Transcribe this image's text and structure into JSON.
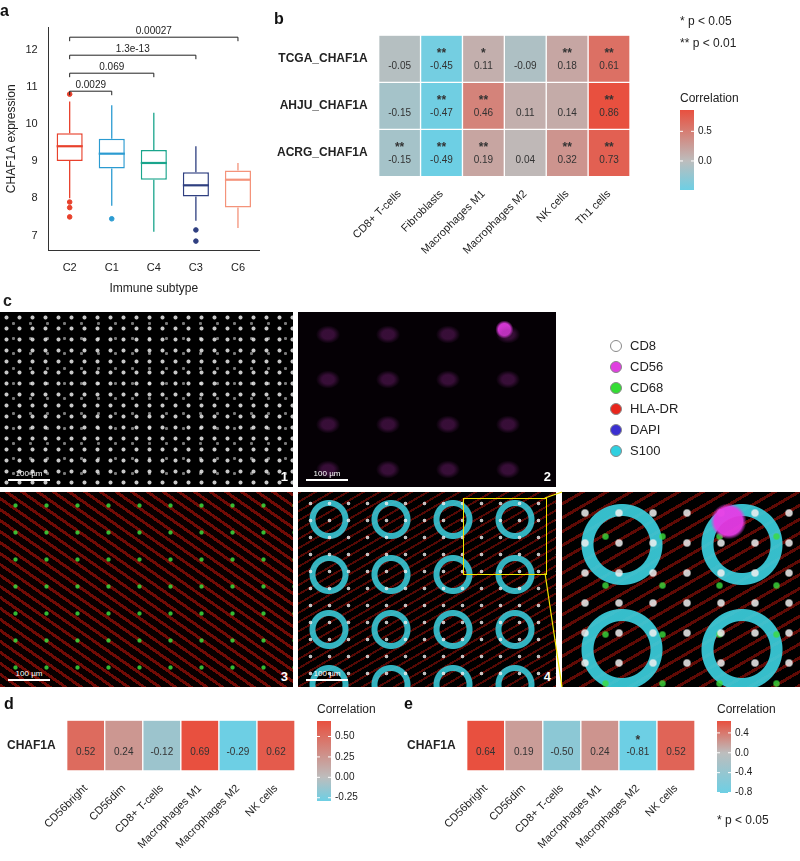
{
  "chart_data": [
    {
      "type": "box",
      "title": "a",
      "categories": [
        "C2",
        "C1",
        "C4",
        "C3",
        "C6"
      ],
      "colors": [
        "#e8412c",
        "#2b9bd1",
        "#1aa58c",
        "#2f3f80",
        "#f4937a"
      ],
      "boxes": [
        {
          "q1": 9.0,
          "median": 9.4,
          "q3": 9.75,
          "whisker_low": 8.0,
          "whisker_high": 10.6,
          "outliers": [
            10.8,
            7.9,
            7.75,
            7.5
          ]
        },
        {
          "q1": 8.8,
          "median": 9.2,
          "q3": 9.6,
          "whisker_low": 7.8,
          "whisker_high": 10.5,
          "outliers": [
            7.45
          ]
        },
        {
          "q1": 8.5,
          "median": 8.95,
          "q3": 9.3,
          "whisker_low": 7.1,
          "whisker_high": 10.3,
          "outliers": []
        },
        {
          "q1": 8.05,
          "median": 8.35,
          "q3": 8.7,
          "whisker_low": 7.4,
          "whisker_high": 9.4,
          "outliers": [
            7.15,
            6.85
          ]
        },
        {
          "q1": 7.75,
          "median": 8.5,
          "q3": 8.75,
          "whisker_low": 7.2,
          "whisker_high": 8.95,
          "outliers": []
        }
      ],
      "x_label": "Immune subtype",
      "y_label": "CHAF1A expression",
      "ylim": [
        6.6,
        12.6
      ],
      "yticks": [
        7,
        8,
        9,
        10,
        11,
        12
      ],
      "grid": false,
      "comparisons": [
        {
          "groups": [
            "C2",
            "C1"
          ],
          "label": "0.0029"
        },
        {
          "groups": [
            "C2",
            "C4"
          ],
          "label": "0.069"
        },
        {
          "groups": [
            "C2",
            "C3"
          ],
          "label": "1.3e-13"
        },
        {
          "groups": [
            "C2",
            "C6"
          ],
          "label": "0.00027"
        }
      ]
    },
    {
      "type": "heatmap",
      "title": "b",
      "x": [
        "CD8+ T-cells",
        "Fibroblasts",
        "Macrophages M1",
        "Macrophages M2",
        "NK cells",
        "Th1 cells"
      ],
      "y": [
        "TCGA_CHAF1A",
        "AHJU_CHAF1A",
        "ACRG_CHAF1A"
      ],
      "values": [
        [
          -0.05,
          -0.45,
          0.11,
          -0.09,
          0.18,
          0.61
        ],
        [
          -0.15,
          -0.47,
          0.46,
          0.11,
          0.14,
          0.86
        ],
        [
          -0.15,
          -0.49,
          0.19,
          0.04,
          0.32,
          0.73
        ]
      ],
      "significance": [
        [
          null,
          "**",
          "*",
          null,
          "**",
          "**"
        ],
        [
          null,
          "**",
          "**",
          null,
          null,
          "**"
        ],
        [
          "**",
          "**",
          "**",
          null,
          "**",
          "**"
        ]
      ],
      "notes": [
        "* p < 0.05",
        "** p < 0.01"
      ],
      "data_labels": true,
      "colorbar": {
        "title": "Correlation",
        "range": [
          -0.49,
          0.86
        ],
        "ticks": [
          {
            "value": 0,
            "label": "0.0"
          },
          0.5
        ],
        "colorscale": [
          "#6dcfe4",
          "#bdbdbd",
          "#e8503f"
        ]
      }
    },
    {
      "type": "heatmap",
      "title": "d",
      "x": [
        "CD56bright",
        "CD56dim",
        "CD8+ T-cells",
        "Macrophages M1",
        "Macrophages M2",
        "NK cells"
      ],
      "y": [
        "CHAF1A"
      ],
      "values": [
        [
          0.52,
          0.24,
          -0.12,
          0.69,
          -0.29,
          0.62
        ]
      ],
      "data_labels": true,
      "colorbar": {
        "title": "Correlation",
        "range": [
          -0.29,
          0.69
        ],
        "ticks": [
          -0.25,
          {
            "value": 0,
            "label": "0.00"
          },
          0.25,
          {
            "value": 0.5,
            "label": "0.50"
          }
        ],
        "colorscale": [
          "#6dcfe4",
          "#bdbdbd",
          "#e8503f"
        ]
      }
    },
    {
      "type": "heatmap",
      "title": "e",
      "x": [
        "CD56bright",
        "CD56dim",
        "CD8+ T-cells",
        "Macrophages M1",
        "Macrophages M2",
        "NK cells"
      ],
      "y": [
        "CHAF1A"
      ],
      "values": [
        [
          0.64,
          0.19,
          -0.5,
          0.24,
          -0.81,
          0.52
        ]
      ],
      "value_labels": [
        [
          "0.64",
          "0.19",
          "-0.50",
          "0.24",
          "-0.81",
          "0.52"
        ]
      ],
      "significance": [
        [
          null,
          null,
          null,
          null,
          "*",
          null
        ]
      ],
      "notes": [
        "* p < 0.05"
      ],
      "data_labels": true,
      "colorbar": {
        "title": "Correlation",
        "range": [
          -0.81,
          0.64
        ],
        "ticks": [
          -0.8,
          -0.4,
          {
            "value": 0,
            "label": "0.0"
          },
          0.4
        ],
        "colorscale": [
          "#6dcfe4",
          "#bdbdbd",
          "#e8503f"
        ]
      }
    }
  ],
  "image_panel": {
    "title": "c",
    "images": [
      "1",
      "2",
      "3",
      "4"
    ],
    "scale_bar": "100 µm",
    "markers": [
      {
        "name": "CD8",
        "color": "#ffffff"
      },
      {
        "name": "CD56",
        "color": "#e040e0"
      },
      {
        "name": "CD68",
        "color": "#33dd33"
      },
      {
        "name": "HLA-DR",
        "color": "#e8261c"
      },
      {
        "name": "DAPI",
        "color": "#3a2fd0"
      },
      {
        "name": "S100",
        "color": "#30d0e0"
      }
    ]
  }
}
